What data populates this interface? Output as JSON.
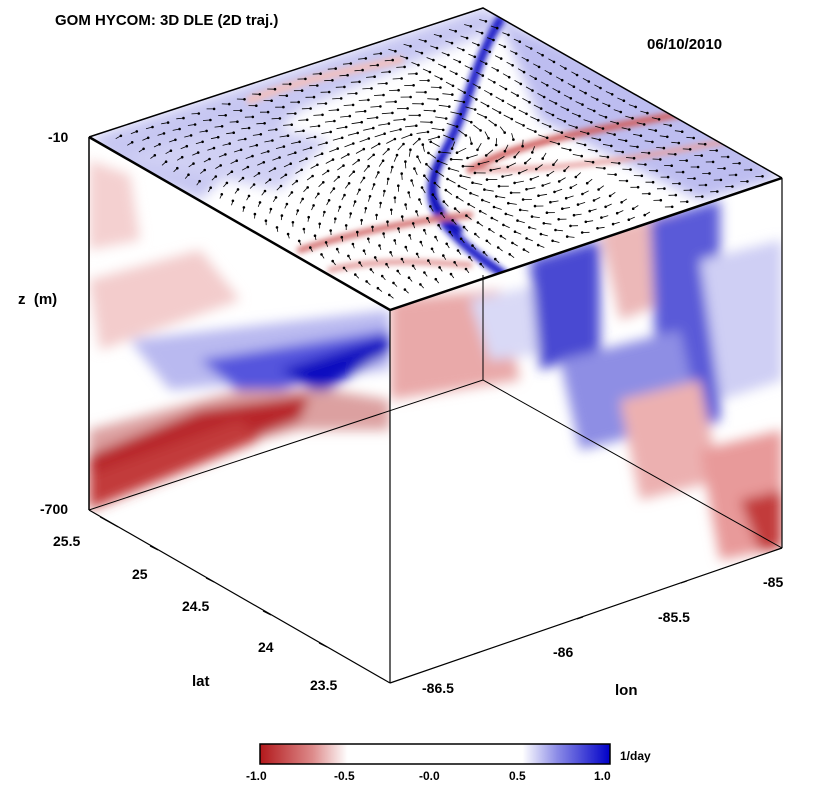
{
  "chart_data": {
    "type": "heatmap",
    "title": "GOM HYCOM: 3D DLE (2D traj.)",
    "date": "06/10/2010",
    "z_axis": {
      "label": "z  (m)",
      "ticks": [
        "-10",
        "-700"
      ],
      "range": [
        -700,
        -10
      ]
    },
    "lat_axis": {
      "label": "lat",
      "ticks": [
        "25.5",
        "25",
        "24.5",
        "24",
        "23.5"
      ],
      "range": [
        23.3,
        25.7
      ]
    },
    "lon_axis": {
      "label": "lon",
      "ticks": [
        "-86.5",
        "-86",
        "-85.5",
        "-85"
      ],
      "range": [
        -86.9,
        -84.9
      ]
    },
    "colorbar": {
      "unit": "1/day",
      "ticks": [
        "-1.0",
        "-0.5",
        "-0.0",
        "0.5",
        "1.0"
      ],
      "range": [
        -1.0,
        1.0
      ],
      "colors": {
        "negative": "#b2181b",
        "zero": "#ffffff",
        "positive": "#0000c8"
      }
    },
    "top_surface": "DLE field with overlaid 2D velocity vectors",
    "features": [
      {
        "face": "top",
        "kind": "strong positive ridge",
        "value": 1.0
      },
      {
        "face": "top",
        "kind": "negative ridges",
        "value": -0.8
      },
      {
        "face": "left wall",
        "kind": "positive band",
        "value": 1.0
      },
      {
        "face": "left wall",
        "kind": "negative band near bottom",
        "value": -1.0
      },
      {
        "face": "right wall",
        "kind": "mixed positive and negative streaks",
        "value": 0.8
      }
    ]
  }
}
